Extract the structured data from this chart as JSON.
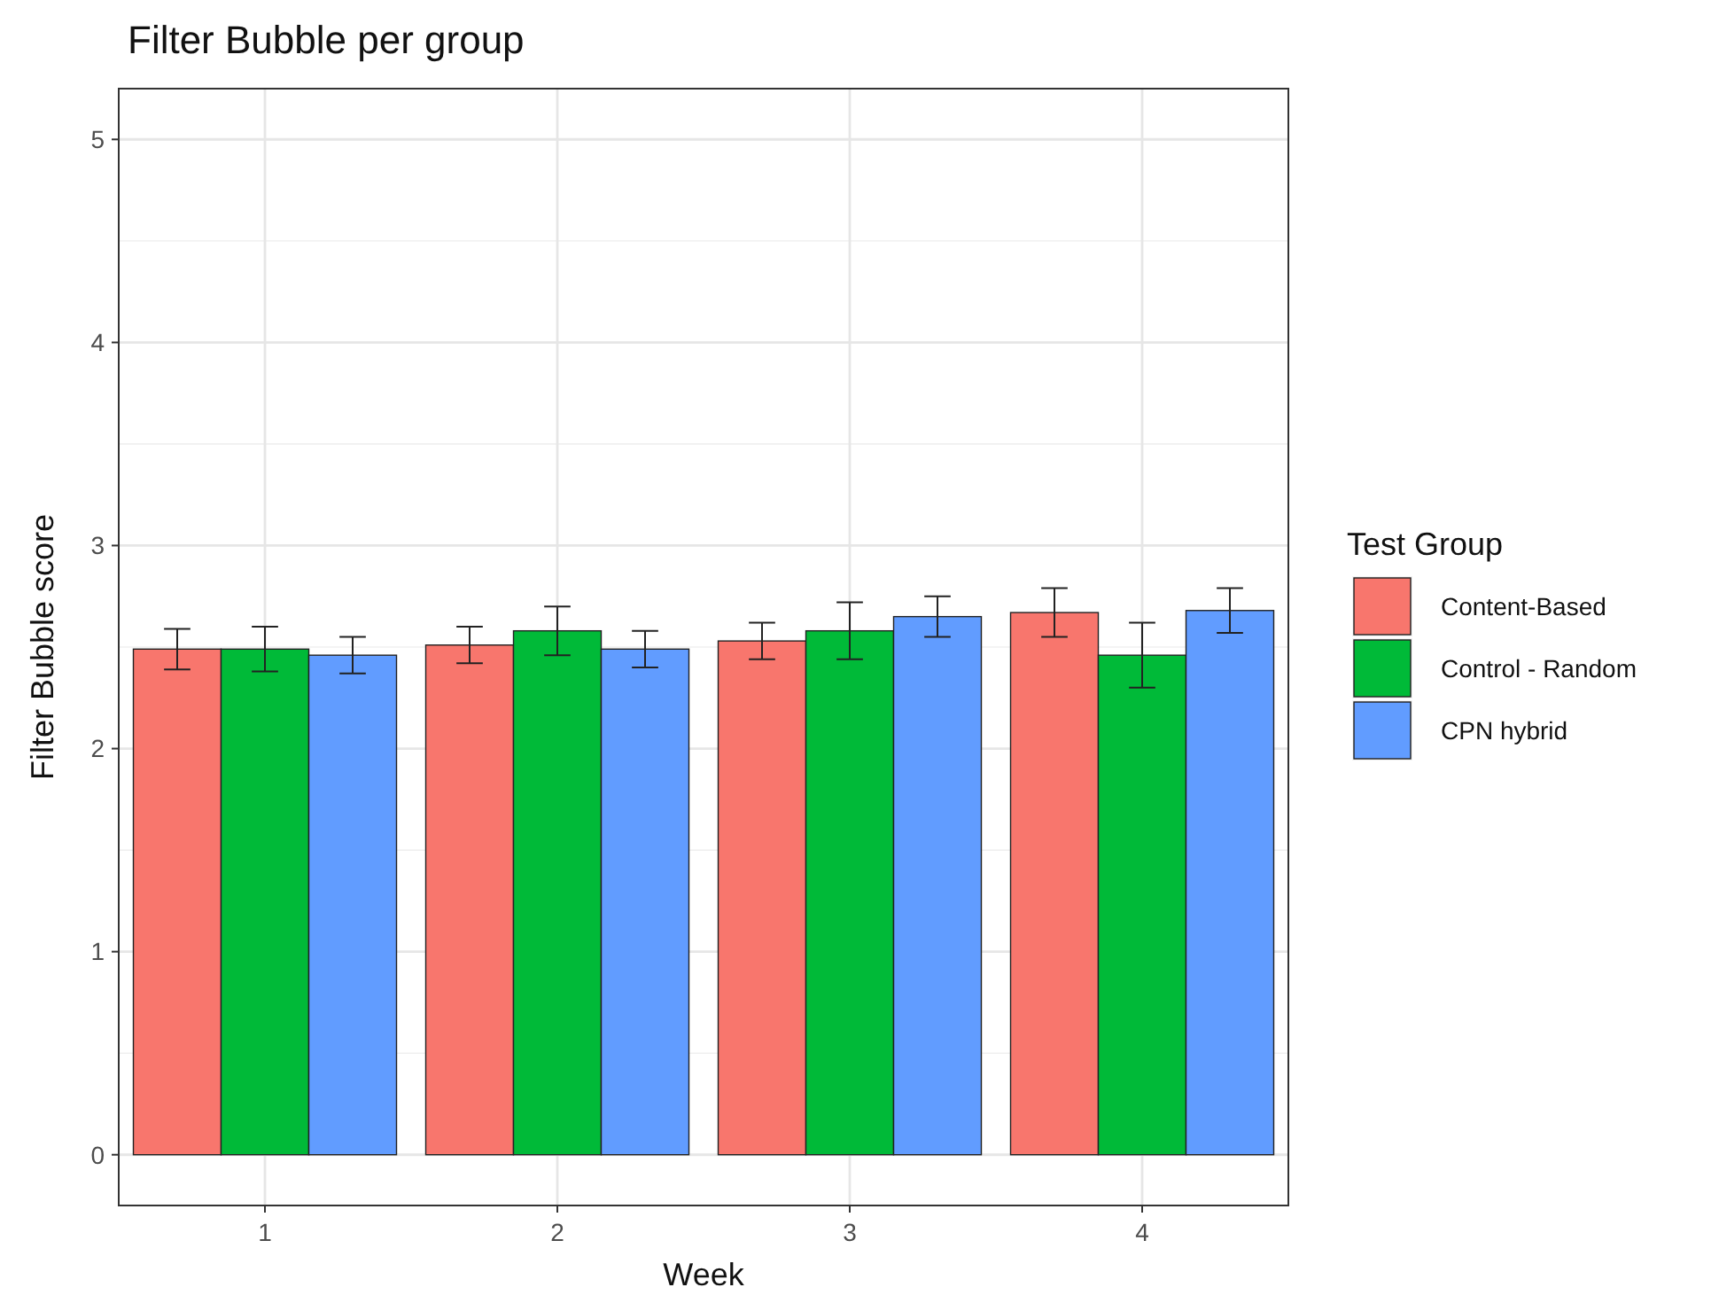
{
  "chart_data": {
    "type": "bar",
    "title": "Filter Bubble per group",
    "xlabel": "Week",
    "ylabel": "Filter Bubble score",
    "legend_title": "Test Group",
    "categories": [
      "1",
      "2",
      "3",
      "4"
    ],
    "series": [
      {
        "name": "Content-Based",
        "color": "#f8766d",
        "values": [
          2.49,
          2.51,
          2.53,
          2.67
        ],
        "errors": [
          0.1,
          0.09,
          0.09,
          0.12
        ]
      },
      {
        "name": "Control - Random",
        "color": "#00ba38",
        "values": [
          2.49,
          2.58,
          2.58,
          2.46
        ],
        "errors": [
          0.11,
          0.12,
          0.14,
          0.16
        ]
      },
      {
        "name": "CPN hybrid",
        "color": "#619cff",
        "values": [
          2.46,
          2.49,
          2.65,
          2.68
        ],
        "errors": [
          0.09,
          0.09,
          0.1,
          0.11
        ]
      }
    ],
    "ylim": [
      -0.25,
      5.25
    ],
    "yticks": [
      0,
      1,
      2,
      3,
      4,
      5
    ],
    "grid": true,
    "legend": "right"
  }
}
